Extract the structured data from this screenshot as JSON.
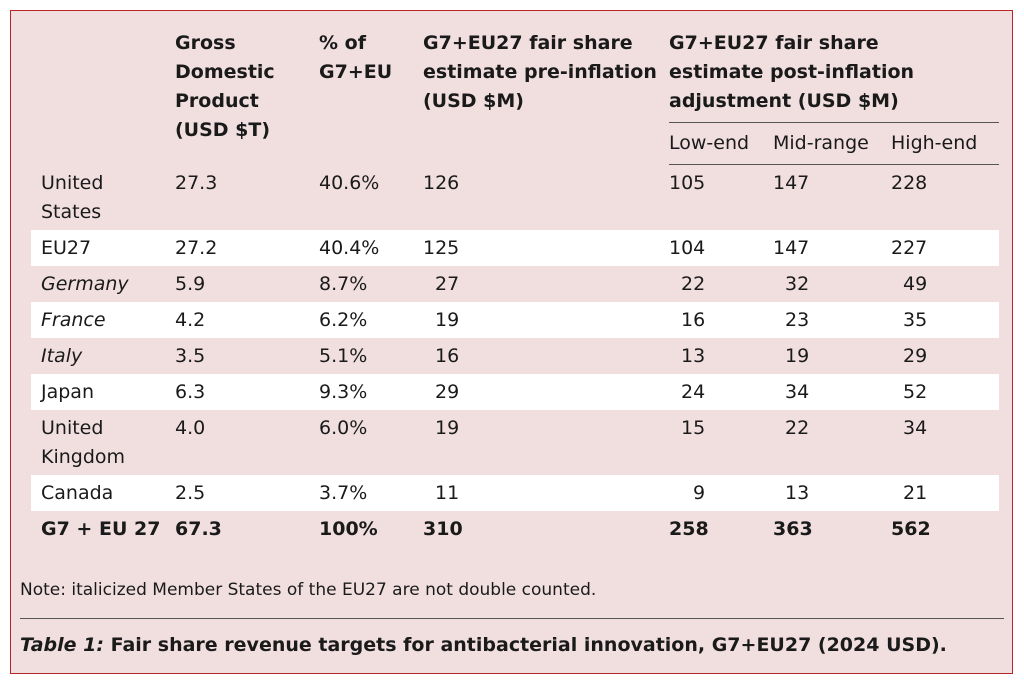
{
  "headers": {
    "gdp": [
      "Gross",
      "Domestic",
      "Product",
      "(USD $T)"
    ],
    "pct": [
      "% of",
      "G7+EU"
    ],
    "pre": [
      "G7+EU27 fair share",
      "estimate pre-inflation",
      "(USD $M)"
    ],
    "post": [
      "G7+EU27 fair share",
      "estimate post-inflation",
      "adjustment (USD $M)"
    ],
    "sub": [
      "Low-end",
      "Mid-range",
      "High-end"
    ]
  },
  "rows": [
    {
      "name": "United States",
      "gdp": "27.3",
      "pct": "40.6%",
      "pre": "126",
      "low": "105",
      "mid": "147",
      "high": "228"
    },
    {
      "name": "EU27",
      "gdp": "27.2",
      "pct": "40.4%",
      "pre": "125",
      "low": "104",
      "mid": "147",
      "high": "227"
    },
    {
      "name": "Germany",
      "gdp": "5.9",
      "pct": "8.7%",
      "pre": "27",
      "low": "22",
      "mid": "32",
      "high": "49"
    },
    {
      "name": "France",
      "gdp": "4.2",
      "pct": "6.2%",
      "pre": "19",
      "low": "16",
      "mid": "23",
      "high": "35"
    },
    {
      "name": "Italy",
      "gdp": "3.5",
      "pct": "5.1%",
      "pre": "16",
      "low": "13",
      "mid": "19",
      "high": "29"
    },
    {
      "name": "Japan",
      "gdp": "6.3",
      "pct": "9.3%",
      "pre": "29",
      "low": "24",
      "mid": "34",
      "high": "52"
    },
    {
      "name": "United Kingdom",
      "gdp": "4.0",
      "pct": "6.0%",
      "pre": "19",
      "low": "15",
      "mid": "22",
      "high": "34"
    },
    {
      "name": "Canada",
      "gdp": "2.5",
      "pct": "3.7%",
      "pre": "11",
      "low": "9",
      "mid": "13",
      "high": "21"
    }
  ],
  "total": {
    "name": "G7 + EU 27",
    "gdp": "67.3",
    "pct": "100%",
    "pre": "310",
    "low": "258",
    "mid": "363",
    "high": "562"
  },
  "note": "Note: italicized Member States of the EU27 are not double counted.",
  "caption": {
    "label": "Table 1:",
    "text": " Fair share revenue targets for antibacterial innovation, G7+EU27 (2024 USD)."
  }
}
